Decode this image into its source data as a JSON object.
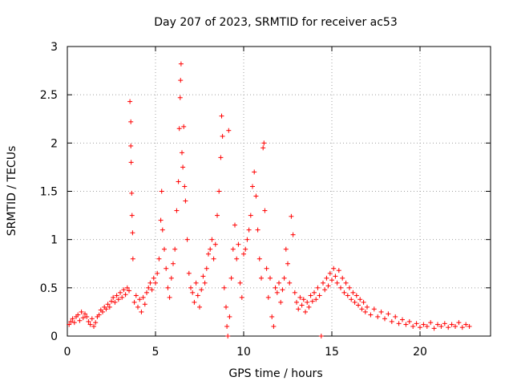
{
  "chart_data": {
    "type": "scatter",
    "title": "Day 207 of 2023, SRMTID for receiver ac53",
    "xlabel": "GPS time / hours",
    "ylabel": "SRMTID / TECUs",
    "xlim": [
      0,
      24
    ],
    "ylim": [
      0,
      3
    ],
    "xticks": [
      0,
      5,
      10,
      15,
      20
    ],
    "xtick_labels": [
      "0",
      "5",
      "10",
      "15",
      "20"
    ],
    "yticks": [
      0,
      0.5,
      1,
      1.5,
      2,
      2.5,
      3
    ],
    "ytick_labels": [
      "0",
      "0.5",
      "1",
      "1.5",
      "2",
      "2.5",
      "3"
    ],
    "grid": true,
    "marker": "+",
    "series": [
      {
        "name": "SRMTID",
        "color": "#ff0000",
        "points": [
          [
            0.1,
            0.12
          ],
          [
            0.2,
            0.15
          ],
          [
            0.3,
            0.18
          ],
          [
            0.4,
            0.14
          ],
          [
            0.5,
            0.2
          ],
          [
            0.6,
            0.22
          ],
          [
            0.7,
            0.16
          ],
          [
            0.8,
            0.25
          ],
          [
            0.9,
            0.19
          ],
          [
            1.0,
            0.23
          ],
          [
            1.1,
            0.2
          ],
          [
            1.2,
            0.15
          ],
          [
            1.3,
            0.12
          ],
          [
            1.4,
            0.18
          ],
          [
            1.5,
            0.1
          ],
          [
            1.6,
            0.14
          ],
          [
            1.7,
            0.2
          ],
          [
            1.8,
            0.22
          ],
          [
            1.9,
            0.27
          ],
          [
            2.0,
            0.25
          ],
          [
            2.1,
            0.3
          ],
          [
            2.2,
            0.28
          ],
          [
            2.3,
            0.33
          ],
          [
            2.4,
            0.3
          ],
          [
            2.5,
            0.36
          ],
          [
            2.6,
            0.4
          ],
          [
            2.7,
            0.35
          ],
          [
            2.8,
            0.42
          ],
          [
            2.9,
            0.38
          ],
          [
            3.0,
            0.45
          ],
          [
            3.1,
            0.4
          ],
          [
            3.2,
            0.48
          ],
          [
            3.3,
            0.43
          ],
          [
            3.4,
            0.5
          ],
          [
            3.5,
            0.47
          ],
          [
            3.55,
            2.43
          ],
          [
            3.6,
            2.22
          ],
          [
            3.6,
            1.97
          ],
          [
            3.62,
            1.8
          ],
          [
            3.65,
            1.48
          ],
          [
            3.67,
            1.25
          ],
          [
            3.7,
            1.07
          ],
          [
            3.72,
            0.8
          ],
          [
            3.8,
            0.35
          ],
          [
            3.9,
            0.42
          ],
          [
            4.0,
            0.3
          ],
          [
            4.1,
            0.38
          ],
          [
            4.2,
            0.25
          ],
          [
            4.3,
            0.4
          ],
          [
            4.4,
            0.33
          ],
          [
            4.5,
            0.45
          ],
          [
            4.6,
            0.5
          ],
          [
            4.7,
            0.55
          ],
          [
            4.8,
            0.48
          ],
          [
            4.9,
            0.6
          ],
          [
            5.0,
            0.55
          ],
          [
            5.1,
            0.65
          ],
          [
            5.2,
            0.8
          ],
          [
            5.3,
            1.2
          ],
          [
            5.35,
            1.5
          ],
          [
            5.4,
            1.1
          ],
          [
            5.5,
            0.9
          ],
          [
            5.6,
            0.7
          ],
          [
            5.7,
            0.5
          ],
          [
            5.8,
            0.4
          ],
          [
            5.9,
            0.6
          ],
          [
            6.0,
            0.75
          ],
          [
            6.1,
            0.9
          ],
          [
            6.2,
            1.3
          ],
          [
            6.3,
            1.6
          ],
          [
            6.35,
            2.15
          ],
          [
            6.4,
            2.47
          ],
          [
            6.42,
            2.65
          ],
          [
            6.45,
            2.82
          ],
          [
            6.5,
            1.9
          ],
          [
            6.55,
            1.75
          ],
          [
            6.6,
            2.17
          ],
          [
            6.65,
            1.55
          ],
          [
            6.7,
            1.4
          ],
          [
            6.8,
            1.0
          ],
          [
            6.9,
            0.65
          ],
          [
            7.0,
            0.5
          ],
          [
            7.1,
            0.45
          ],
          [
            7.2,
            0.35
          ],
          [
            7.3,
            0.55
          ],
          [
            7.4,
            0.42
          ],
          [
            7.5,
            0.3
          ],
          [
            7.6,
            0.48
          ],
          [
            7.7,
            0.62
          ],
          [
            7.8,
            0.55
          ],
          [
            7.9,
            0.7
          ],
          [
            8.0,
            0.85
          ],
          [
            8.1,
            0.9
          ],
          [
            8.2,
            1.0
          ],
          [
            8.3,
            0.8
          ],
          [
            8.4,
            0.95
          ],
          [
            8.5,
            1.25
          ],
          [
            8.6,
            1.5
          ],
          [
            8.7,
            1.85
          ],
          [
            8.75,
            2.28
          ],
          [
            8.8,
            2.07
          ],
          [
            8.9,
            0.5
          ],
          [
            9.0,
            0.3
          ],
          [
            9.05,
            0.1
          ],
          [
            9.1,
            0.0
          ],
          [
            9.15,
            2.13
          ],
          [
            9.2,
            0.2
          ],
          [
            9.3,
            0.6
          ],
          [
            9.4,
            0.9
          ],
          [
            9.5,
            1.15
          ],
          [
            9.6,
            0.8
          ],
          [
            9.7,
            0.95
          ],
          [
            9.8,
            0.55
          ],
          [
            9.9,
            0.4
          ],
          [
            10.0,
            0.85
          ],
          [
            10.1,
            0.9
          ],
          [
            10.2,
            1.0
          ],
          [
            10.3,
            1.1
          ],
          [
            10.4,
            1.25
          ],
          [
            10.5,
            1.55
          ],
          [
            10.6,
            1.7
          ],
          [
            10.7,
            1.45
          ],
          [
            10.8,
            1.1
          ],
          [
            10.9,
            0.8
          ],
          [
            11.0,
            0.6
          ],
          [
            11.1,
            1.95
          ],
          [
            11.15,
            2.0
          ],
          [
            11.2,
            1.3
          ],
          [
            11.3,
            0.7
          ],
          [
            11.4,
            0.4
          ],
          [
            11.5,
            0.6
          ],
          [
            11.6,
            0.2
          ],
          [
            11.7,
            0.1
          ],
          [
            11.8,
            0.5
          ],
          [
            11.9,
            0.45
          ],
          [
            12.0,
            0.55
          ],
          [
            12.1,
            0.35
          ],
          [
            12.2,
            0.48
          ],
          [
            12.3,
            0.6
          ],
          [
            12.4,
            0.9
          ],
          [
            12.5,
            0.75
          ],
          [
            12.6,
            0.55
          ],
          [
            12.7,
            1.24
          ],
          [
            12.8,
            1.05
          ],
          [
            12.9,
            0.45
          ],
          [
            13.0,
            0.35
          ],
          [
            13.1,
            0.28
          ],
          [
            13.2,
            0.4
          ],
          [
            13.3,
            0.32
          ],
          [
            13.4,
            0.38
          ],
          [
            13.5,
            0.25
          ],
          [
            13.6,
            0.35
          ],
          [
            13.7,
            0.3
          ],
          [
            13.8,
            0.42
          ],
          [
            13.9,
            0.36
          ],
          [
            14.0,
            0.45
          ],
          [
            14.1,
            0.38
          ],
          [
            14.2,
            0.5
          ],
          [
            14.3,
            0.42
          ],
          [
            14.4,
            0.0
          ],
          [
            14.5,
            0.55
          ],
          [
            14.6,
            0.48
          ],
          [
            14.7,
            0.6
          ],
          [
            14.8,
            0.52
          ],
          [
            14.9,
            0.65
          ],
          [
            15.0,
            0.58
          ],
          [
            15.1,
            0.7
          ],
          [
            15.2,
            0.62
          ],
          [
            15.3,
            0.55
          ],
          [
            15.4,
            0.68
          ],
          [
            15.5,
            0.5
          ],
          [
            15.6,
            0.6
          ],
          [
            15.7,
            0.45
          ],
          [
            15.8,
            0.55
          ],
          [
            15.9,
            0.42
          ],
          [
            16.0,
            0.5
          ],
          [
            16.1,
            0.38
          ],
          [
            16.2,
            0.45
          ],
          [
            16.3,
            0.35
          ],
          [
            16.4,
            0.42
          ],
          [
            16.5,
            0.32
          ],
          [
            16.6,
            0.38
          ],
          [
            16.7,
            0.28
          ],
          [
            16.8,
            0.35
          ],
          [
            16.9,
            0.25
          ],
          [
            17.0,
            0.3
          ],
          [
            17.2,
            0.22
          ],
          [
            17.4,
            0.28
          ],
          [
            17.6,
            0.2
          ],
          [
            17.8,
            0.25
          ],
          [
            18.0,
            0.18
          ],
          [
            18.2,
            0.23
          ],
          [
            18.4,
            0.15
          ],
          [
            18.6,
            0.2
          ],
          [
            18.8,
            0.13
          ],
          [
            19.0,
            0.17
          ],
          [
            19.2,
            0.12
          ],
          [
            19.4,
            0.15
          ],
          [
            19.6,
            0.1
          ],
          [
            19.8,
            0.13
          ],
          [
            20.0,
            0.09
          ],
          [
            20.2,
            0.12
          ],
          [
            20.4,
            0.1
          ],
          [
            20.6,
            0.14
          ],
          [
            20.8,
            0.08
          ],
          [
            21.0,
            0.12
          ],
          [
            21.2,
            0.1
          ],
          [
            21.4,
            0.13
          ],
          [
            21.6,
            0.09
          ],
          [
            21.8,
            0.12
          ],
          [
            22.0,
            0.1
          ],
          [
            22.2,
            0.14
          ],
          [
            22.4,
            0.09
          ],
          [
            22.6,
            0.12
          ],
          [
            22.8,
            0.1
          ]
        ]
      }
    ]
  }
}
